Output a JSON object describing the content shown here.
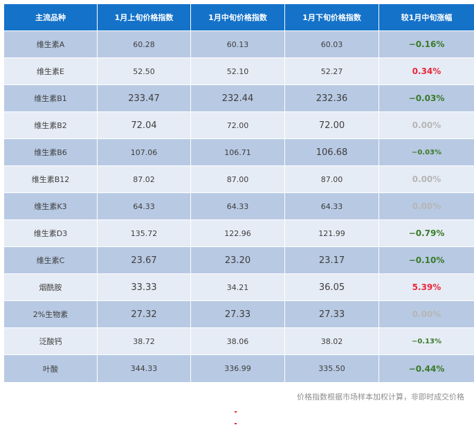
{
  "table": {
    "headers": [
      "主流品种",
      "1月上旬价格指数",
      "1月中旬价格指数",
      "1月下旬价格指数",
      "较1月中旬涨幅"
    ],
    "rows": [
      {
        "name": "维生素A",
        "early": "60.28",
        "mid": "60.13",
        "late": "60.03",
        "change": "−0.16%",
        "trend": "down"
      },
      {
        "name": "维生素E",
        "early": "52.50",
        "mid": "52.10",
        "late": "52.27",
        "change": "0.34%",
        "trend": "up"
      },
      {
        "name": "维生素B1",
        "early": "233.47",
        "mid": "232.44",
        "late": "232.36",
        "change": "−0.03%",
        "trend": "down"
      },
      {
        "name": "维生素B2",
        "early": "72.04",
        "mid": "72.00",
        "late": "72.00",
        "change": "0.00%",
        "trend": "flat"
      },
      {
        "name": "维生素B6",
        "early": "107.06",
        "mid": "106.71",
        "late": "106.68",
        "change": "−0.03%",
        "trend": "down"
      },
      {
        "name": "维生素B12",
        "early": "87.02",
        "mid": "87.00",
        "late": "87.00",
        "change": "0.00%",
        "trend": "flat"
      },
      {
        "name": "维生素K3",
        "early": "64.33",
        "mid": "64.33",
        "late": "64.33",
        "change": "0.00%",
        "trend": "flat"
      },
      {
        "name": "维生素D3",
        "early": "135.72",
        "mid": "122.96",
        "late": "121.99",
        "change": "−0.79%",
        "trend": "down"
      },
      {
        "name": "维生素C",
        "early": "23.67",
        "mid": "23.20",
        "late": "23.17",
        "change": "−0.10%",
        "trend": "down"
      },
      {
        "name": "烟酰胺",
        "early": "33.33",
        "mid": "34.21",
        "late": "36.05",
        "change": "5.39%",
        "trend": "up"
      },
      {
        "name": "2%生物素",
        "early": "27.32",
        "mid": "27.33",
        "late": "27.33",
        "change": "0.00%",
        "trend": "flat"
      },
      {
        "name": "泛酸钙",
        "early": "38.72",
        "mid": "38.06",
        "late": "38.02",
        "change": "−0.13%",
        "trend": "down"
      },
      {
        "name": "叶酸",
        "early": "344.33",
        "mid": "336.99",
        "late": "335.50",
        "change": "−0.44%",
        "trend": "down"
      }
    ]
  },
  "note": "价格指数根据市场样本加权计算，非即时成交价格",
  "colors": {
    "header_bg": "#1472c9",
    "row_dark": "#b8c9e3",
    "row_light": "#e6ecf5",
    "down": "#3a7a2a",
    "up": "#e8283c",
    "flat": "#b6b6b6"
  }
}
